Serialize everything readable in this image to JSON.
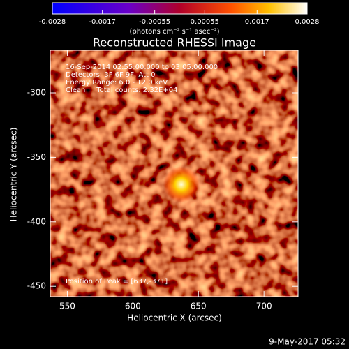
{
  "chart_data": {
    "type": "image",
    "title": "Reconstructed RHESSI Image",
    "xlabel": "Heliocentric X (arcsec)",
    "ylabel": "Heliocentric Y (arcsec)",
    "xlim": [
      537,
      726
    ],
    "ylim": [
      -458,
      -267
    ],
    "xticks": [
      550,
      600,
      650,
      700
    ],
    "yticks": [
      -450,
      -400,
      -350,
      -300
    ],
    "colorbar": {
      "lim": [
        -0.0028,
        0.0028
      ],
      "ticks": [
        -0.0028,
        -0.0017,
        -0.00055,
        0.00055,
        0.0017,
        0.0028
      ],
      "label": "(photons cm⁻² s⁻¹ asec⁻²)"
    },
    "annotations": [
      "16-Sep-2014 02:55:00.000 to 03:05:00.000",
      "Detectors: 3F 6F 9F, Att 0",
      "Energy Range: 6.0 - 12.0 keV",
      "Clean     Total counts: 2.32E+04"
    ],
    "peak": {
      "x": 637,
      "y": -371,
      "label": "Position of Peak = [637,-371]"
    },
    "footer": "9-May-2017 05:32"
  }
}
